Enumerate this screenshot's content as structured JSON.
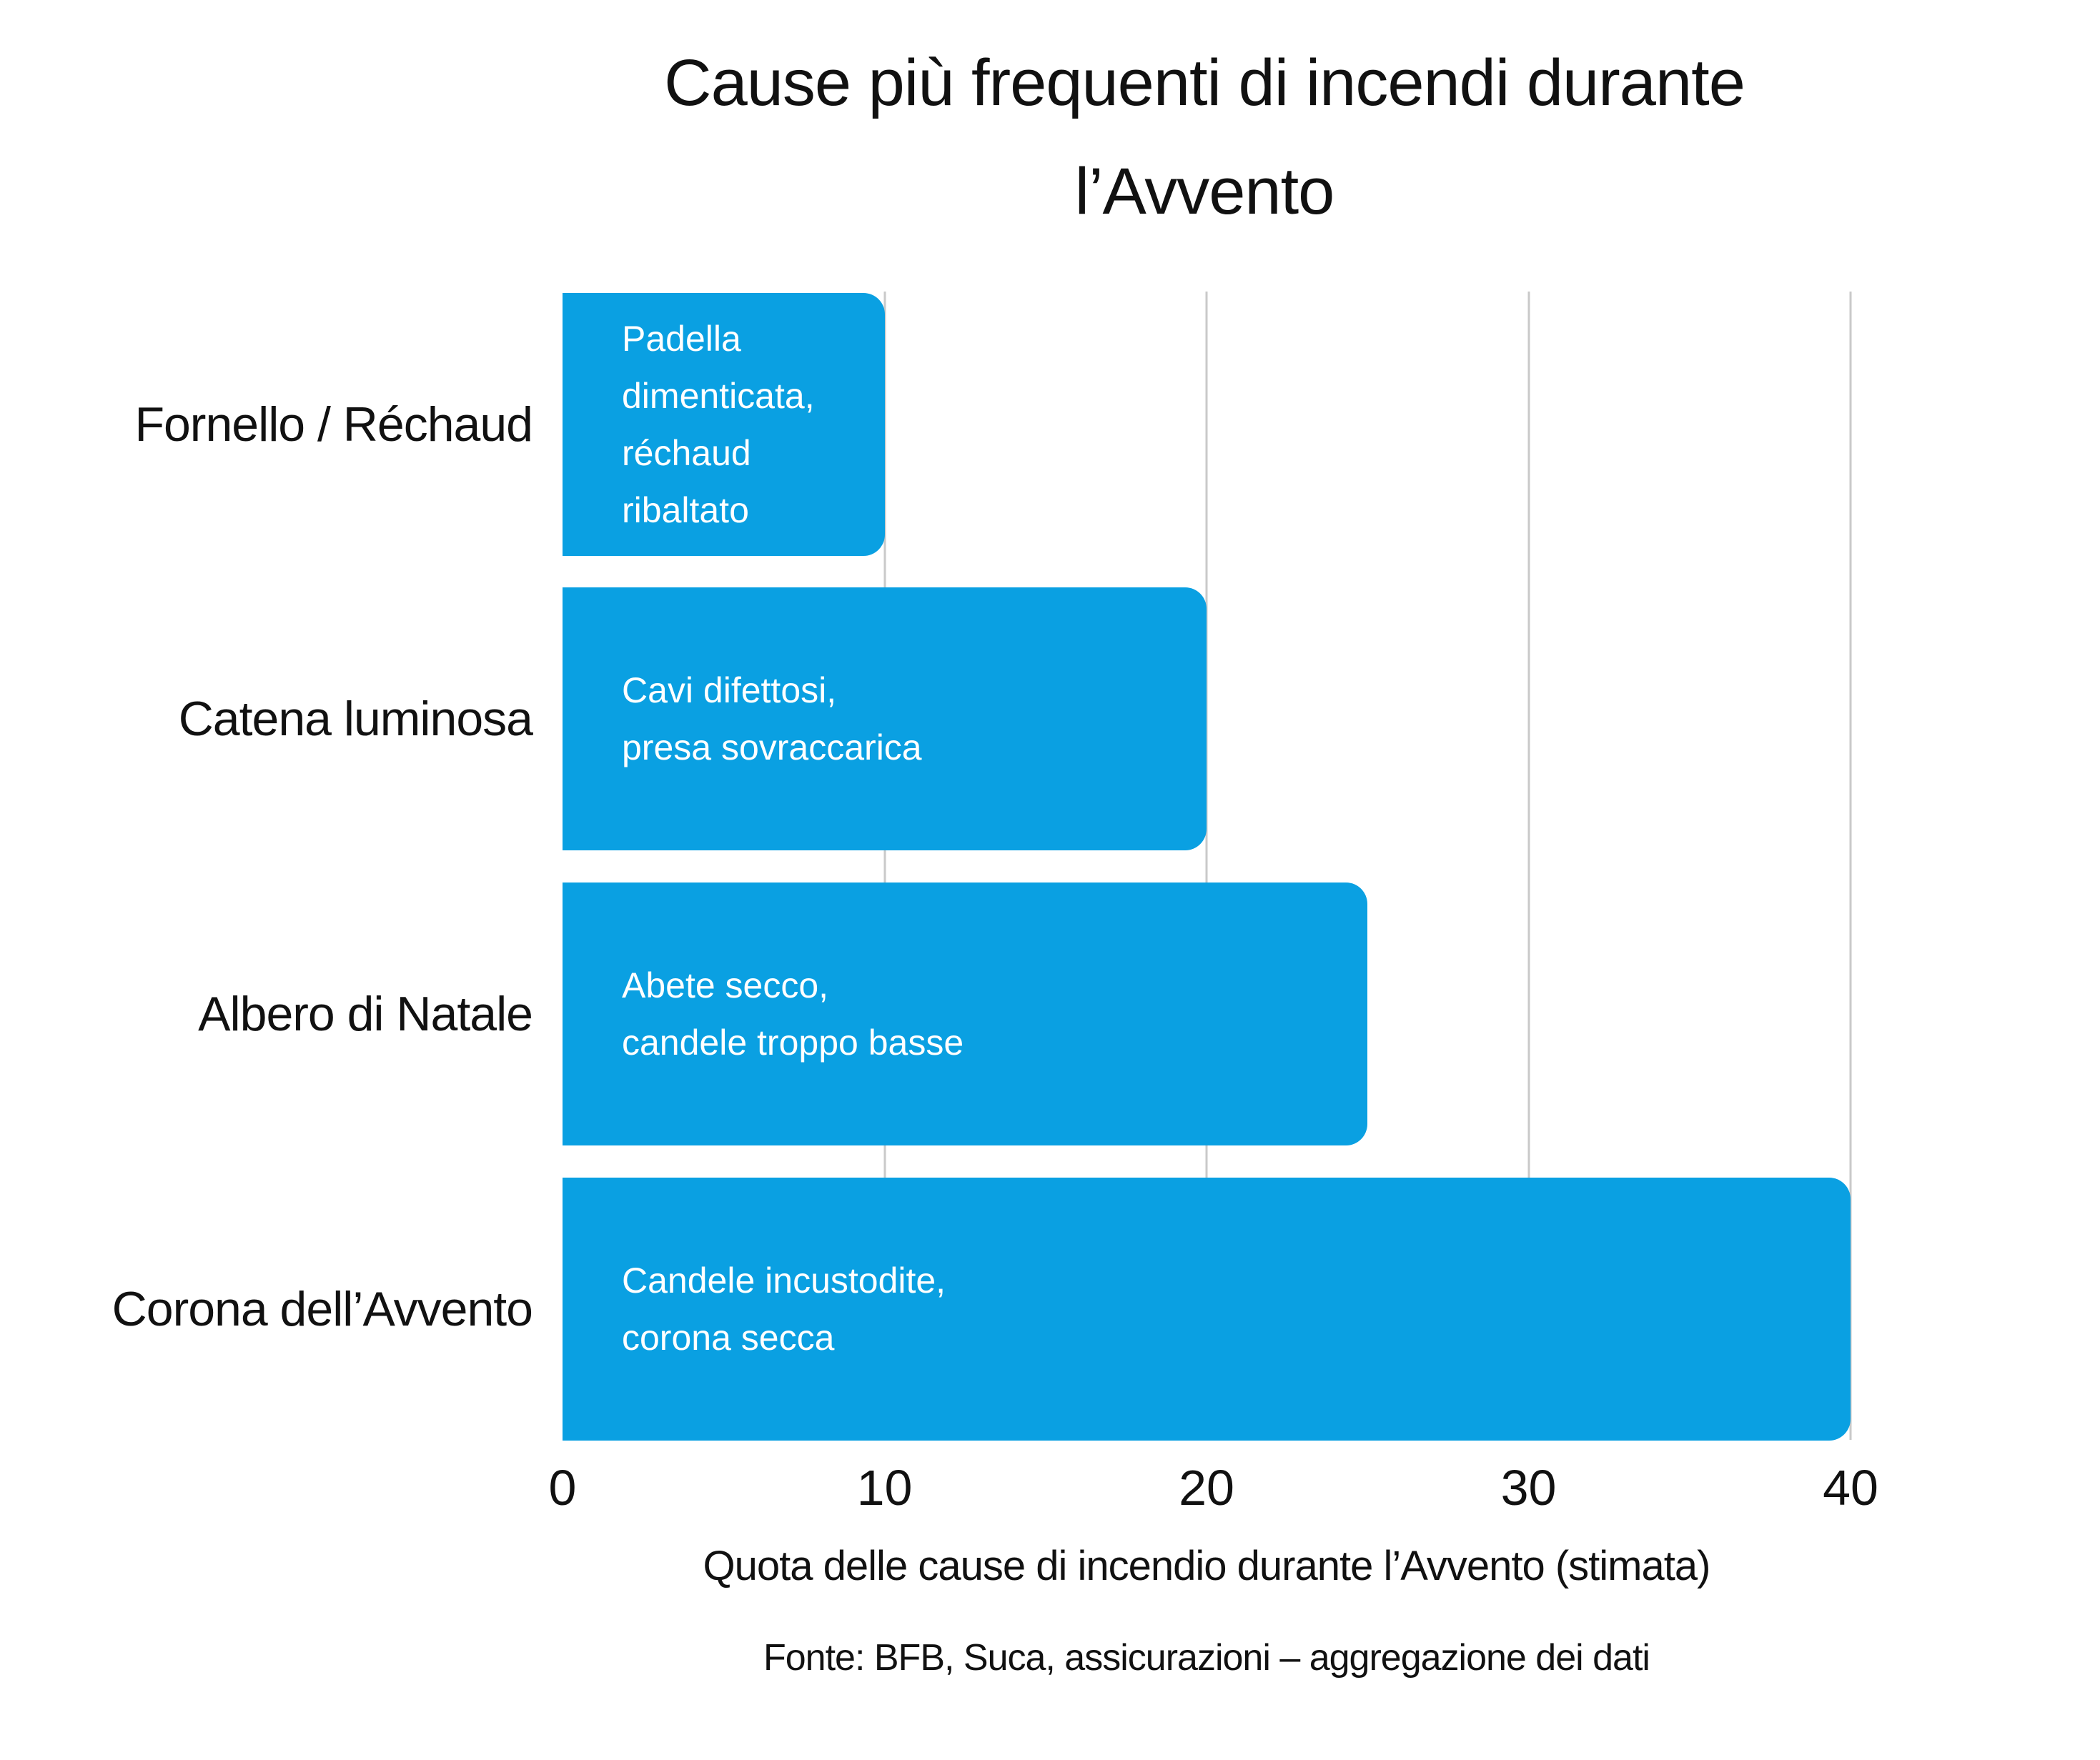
{
  "page": {
    "background": "#ffffff"
  },
  "chart_data": {
    "type": "bar",
    "orientation": "horizontal",
    "title": "Cause più frequenti di incendi durante l’Avvento",
    "title_lines": [
      "Cause più frequenti di incendi durante",
      "l’Avvento"
    ],
    "categories": [
      "Fornello / Réchaud",
      "Catena luminosa",
      "Albero di Natale",
      "Corona dell’Avvento"
    ],
    "values": [
      10,
      20,
      25,
      40
    ],
    "bar_annotations": [
      [
        "Padella",
        "dimenticata,",
        "réchaud",
        "ribaltato"
      ],
      [
        "Cavi difettosi,",
        "presa sovraccarica"
      ],
      [
        "Abete secco,",
        "candele troppo basse"
      ],
      [
        "Candele incustodite,",
        "corona secca"
      ]
    ],
    "xlabel": "Quota delle cause di incendio durante l’Avvento (stimata)",
    "source_note": "Fonte: BFB, Suca, assicurazioni – aggregazione dei dati",
    "xlim": [
      0,
      40
    ],
    "xticks": [
      0,
      10,
      20,
      30,
      40
    ],
    "grid": true,
    "legend": false,
    "colors": {
      "bar": "#0aa0e2",
      "bar_text": "#ffffff",
      "grid": "#c9c9c9",
      "text": "#111111"
    }
  }
}
